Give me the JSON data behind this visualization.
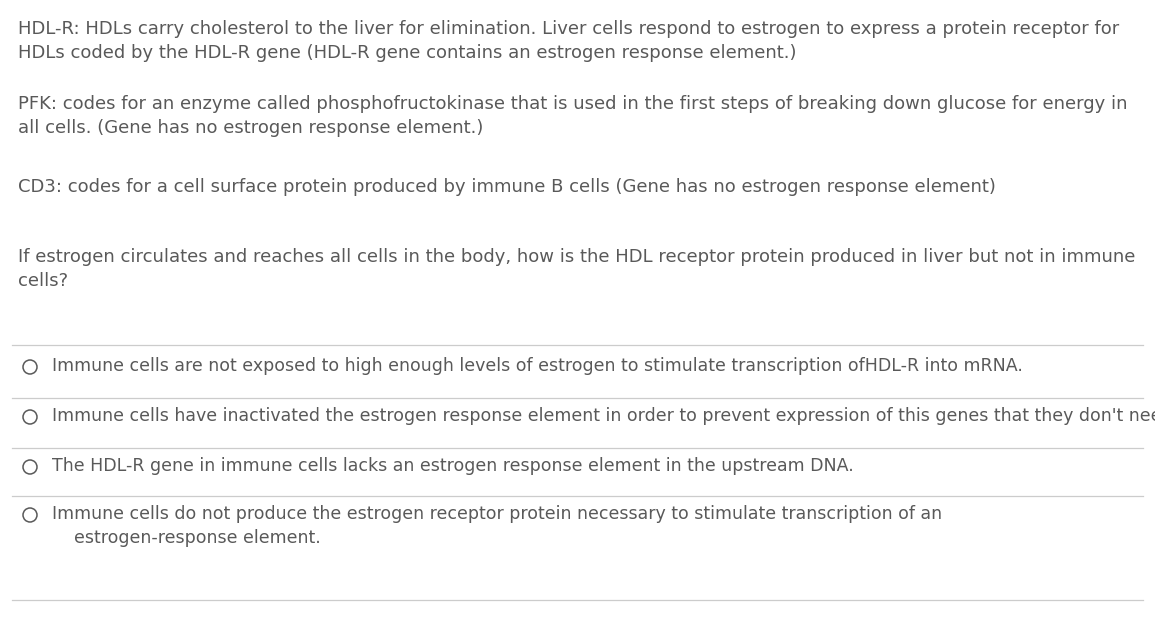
{
  "background_color": "#ffffff",
  "text_color": "#595959",
  "line_color": "#cccccc",
  "font_size": 13.0,
  "option_font_size": 12.5,
  "paragraphs": [
    "HDL-R: HDLs carry cholesterol to the liver for elimination. Liver cells respond to estrogen to express a protein receptor for\nHDLs coded by the HDL-R gene (HDL-R gene contains an estrogen response element.)",
    "PFK: codes for an enzyme called phosphofructokinase that is used in the first steps of breaking down glucose for energy in\nall cells. (Gene has no estrogen response element.)",
    "CD3: codes for a cell surface protein produced by immune B cells (Gene has no estrogen response element)",
    "If estrogen circulates and reaches all cells in the body, how is the HDL receptor protein produced in liver but not in immune\ncells?"
  ],
  "options": [
    "Immune cells are not exposed to high enough levels of estrogen to stimulate transcription ofHDL-R into mRNA.",
    "Immune cells have inactivated the estrogen response element in order to prevent expression of this genes that they don't need.",
    "The HDL-R gene in immune cells lacks an estrogen response element in the upstream DNA.",
    "Immune cells do not produce the estrogen receptor protein necessary to stimulate transcription of an\n    estrogen-response element."
  ],
  "fig_width": 11.55,
  "fig_height": 6.27,
  "dpi": 100
}
